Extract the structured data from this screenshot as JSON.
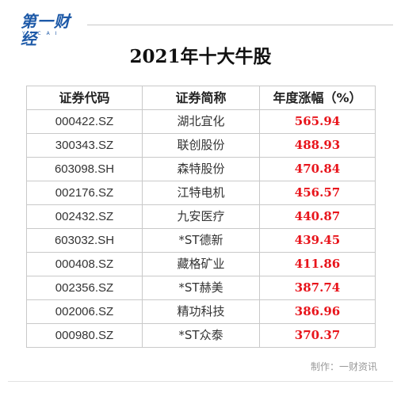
{
  "brand": {
    "logo_cn": "第一财经",
    "logo_en": "YICAI",
    "accent_color": "#1e5aa8"
  },
  "title": "2021年十大牛股",
  "table": {
    "headers": [
      "证券代码",
      "证券简称",
      "年度涨幅（%）"
    ],
    "rows": [
      {
        "code": "000422.SZ",
        "name": "湖北宜化",
        "pct": "565.94"
      },
      {
        "code": "300343.SZ",
        "name": "联创股份",
        "pct": "488.93"
      },
      {
        "code": "603098.SH",
        "name": "森特股份",
        "pct": "470.84"
      },
      {
        "code": "002176.SZ",
        "name": "江特电机",
        "pct": "456.57"
      },
      {
        "code": "002432.SZ",
        "name": "九安医疗",
        "pct": "440.87"
      },
      {
        "code": "603032.SH",
        "name": "*ST德新",
        "pct": "439.45"
      },
      {
        "code": "000408.SZ",
        "name": "藏格矿业",
        "pct": "411.86"
      },
      {
        "code": "002356.SZ",
        "name": "*ST赫美",
        "pct": "387.74"
      },
      {
        "code": "002006.SZ",
        "name": "精功科技",
        "pct": "386.96"
      },
      {
        "code": "000980.SZ",
        "name": "*ST众泰",
        "pct": "370.37"
      }
    ],
    "pct_color": "#e8141b"
  },
  "credit": "制作：一财资讯"
}
